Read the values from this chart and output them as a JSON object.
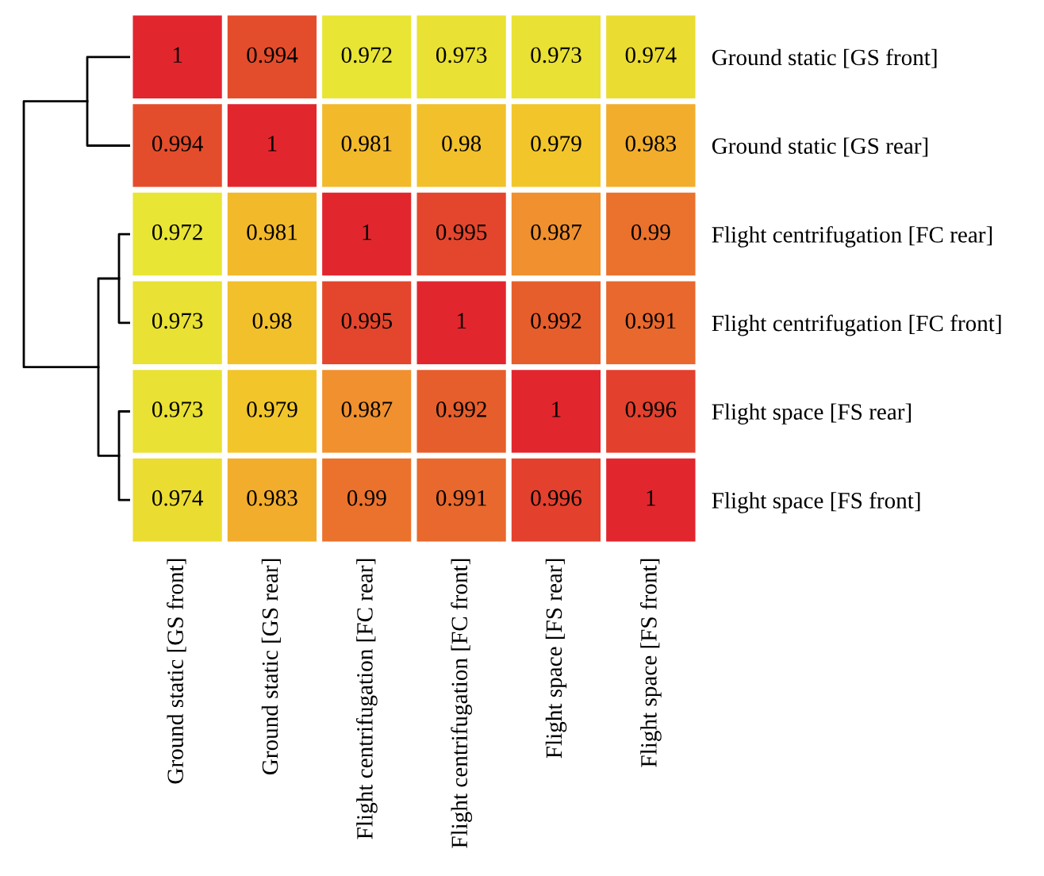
{
  "chart_data": {
    "type": "heatmap",
    "categories": [
      "Ground static [GS front]",
      "Ground static [GS rear]",
      "Flight centrifugation [FC rear]",
      "Flight centrifugation [FC front]",
      "Flight space [FS rear]",
      "Flight space [FS front]"
    ],
    "y_categories": [
      "Ground static [GS front]",
      "Ground static [GS rear]",
      "Flight centrifugation [FC rear]",
      "Flight centrifugation [FC front]",
      "Flight space [FS rear]",
      "Flight space [FS front]"
    ],
    "cells": [
      [
        1,
        0.994,
        0.972,
        0.973,
        0.973,
        0.974
      ],
      [
        0.994,
        1,
        0.981,
        0.98,
        0.979,
        0.983
      ],
      [
        0.972,
        0.981,
        1,
        0.995,
        0.987,
        0.99
      ],
      [
        0.973,
        0.98,
        0.995,
        1,
        0.992,
        0.991
      ],
      [
        0.973,
        0.979,
        0.987,
        0.992,
        1,
        0.996
      ],
      [
        0.974,
        0.983,
        0.99,
        0.991,
        0.996,
        1
      ]
    ],
    "data_labels": true
  }
}
